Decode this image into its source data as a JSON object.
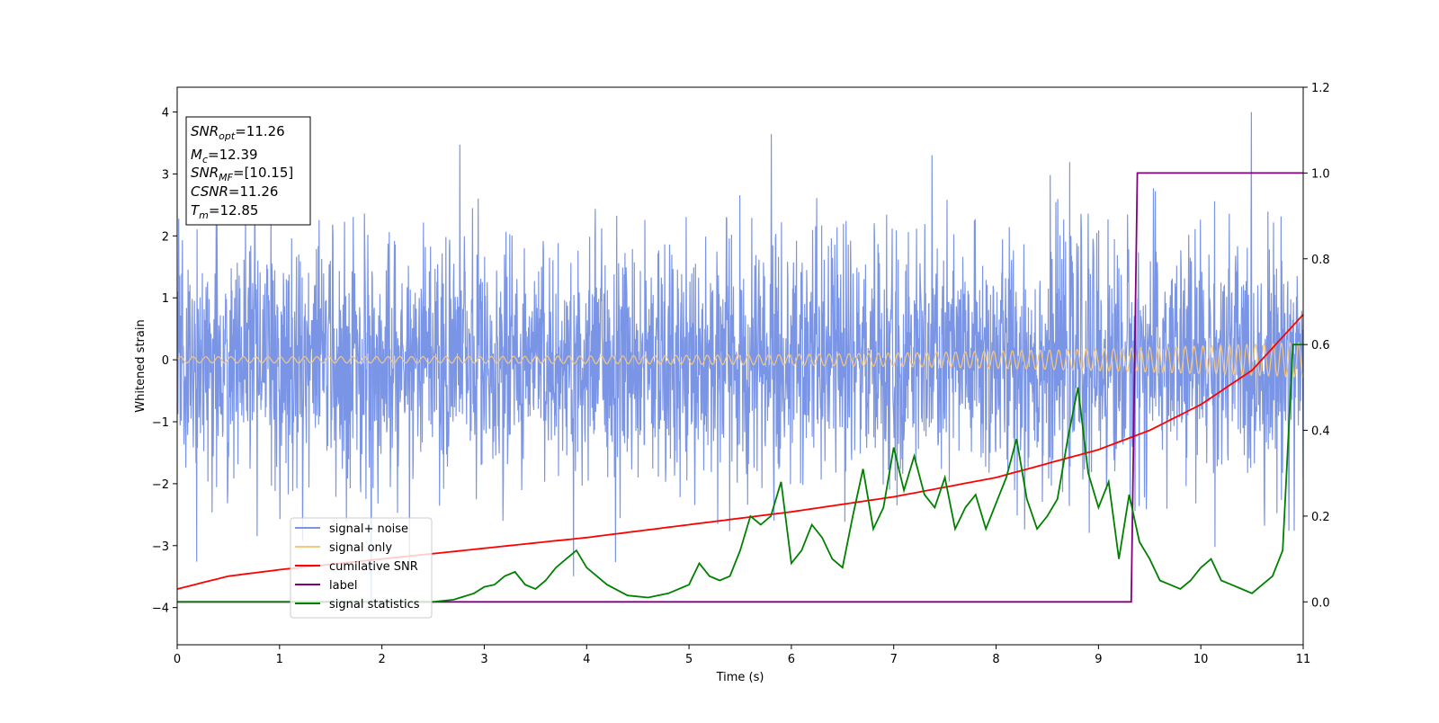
{
  "chart_data": {
    "type": "line",
    "xlabel": "Time (s)",
    "ylabel": "Whitened strain",
    "xlim": [
      0,
      11
    ],
    "ylim": [
      -4.6,
      4.4
    ],
    "y2lim": [
      -0.1,
      1.2
    ],
    "x_ticks": [
      0,
      1,
      2,
      3,
      4,
      5,
      6,
      7,
      8,
      9,
      10,
      11
    ],
    "y_ticks": [
      4,
      3,
      2,
      1,
      0,
      -1,
      -2,
      -3,
      -4
    ],
    "y2_ticks": [
      1.2,
      1.0,
      0.8,
      0.6,
      0.4,
      0.2,
      0.0
    ],
    "x_tick_labels": [
      "0",
      "1",
      "2",
      "3",
      "4",
      "5",
      "6",
      "7",
      "8",
      "9",
      "10",
      "11"
    ],
    "y_tick_labels": [
      "4",
      "3",
      "2",
      "1",
      "0",
      "−1",
      "−2",
      "−3",
      "−4"
    ],
    "y2_tick_labels": [
      "1.2",
      "1.0",
      "0.8",
      "0.6",
      "0.4",
      "0.2",
      "0.0"
    ],
    "grid": false,
    "legend_position": "lower-left",
    "series": [
      {
        "name": "signal+ noise",
        "axis": "left",
        "color": "#7b95e6",
        "description_values": {
          "mean": 0,
          "typical_amplitude": 1.0,
          "range": [
            -3.95,
            4.0
          ]
        }
      },
      {
        "name": "signal only",
        "axis": "left",
        "color": "#f5c77e",
        "description_values": {
          "amplitude_start": 0.05,
          "amplitude_end": 0.28
        }
      },
      {
        "name": "cumilative SNR",
        "axis": "right",
        "color": "#ff0000",
        "x": [
          0,
          0.5,
          1,
          2,
          3,
          4,
          5,
          6,
          7,
          8,
          9,
          9.5,
          10,
          10.5,
          11
        ],
        "y": [
          0.03,
          0.06,
          0.075,
          0.1,
          0.125,
          0.15,
          0.18,
          0.21,
          0.245,
          0.29,
          0.355,
          0.4,
          0.46,
          0.54,
          0.67
        ]
      },
      {
        "name": "label",
        "axis": "right",
        "color": "#800080",
        "x": [
          0,
          9.32,
          9.38,
          11
        ],
        "y": [
          0.0,
          0.0,
          1.0,
          1.0
        ]
      },
      {
        "name": "signal statistics",
        "axis": "right",
        "color": "#008000",
        "x": [
          0,
          0.5,
          1,
          1.5,
          2,
          2.5,
          2.7,
          2.9,
          3.0,
          3.1,
          3.2,
          3.3,
          3.4,
          3.5,
          3.6,
          3.7,
          3.8,
          3.9,
          4.0,
          4.2,
          4.4,
          4.6,
          4.8,
          5.0,
          5.1,
          5.2,
          5.3,
          5.4,
          5.5,
          5.6,
          5.7,
          5.8,
          5.9,
          6.0,
          6.1,
          6.2,
          6.3,
          6.4,
          6.5,
          6.6,
          6.7,
          6.8,
          6.9,
          7.0,
          7.1,
          7.2,
          7.3,
          7.4,
          7.5,
          7.6,
          7.7,
          7.8,
          7.9,
          8.0,
          8.1,
          8.2,
          8.3,
          8.4,
          8.5,
          8.6,
          8.7,
          8.8,
          8.9,
          9.0,
          9.1,
          9.2,
          9.3,
          9.4,
          9.5,
          9.6,
          9.7,
          9.8,
          9.9,
          10.0,
          10.1,
          10.2,
          10.3,
          10.4,
          10.5,
          10.6,
          10.7,
          10.8,
          10.9,
          11.0
        ],
        "y": [
          0.0,
          0.0,
          0.0,
          0.0,
          0.0,
          0.0,
          0.005,
          0.02,
          0.035,
          0.04,
          0.06,
          0.07,
          0.04,
          0.03,
          0.05,
          0.08,
          0.1,
          0.12,
          0.08,
          0.04,
          0.015,
          0.01,
          0.02,
          0.04,
          0.09,
          0.06,
          0.05,
          0.06,
          0.12,
          0.2,
          0.18,
          0.2,
          0.28,
          0.09,
          0.12,
          0.18,
          0.15,
          0.1,
          0.08,
          0.2,
          0.31,
          0.17,
          0.22,
          0.36,
          0.26,
          0.34,
          0.25,
          0.22,
          0.29,
          0.17,
          0.22,
          0.25,
          0.17,
          0.23,
          0.29,
          0.38,
          0.24,
          0.17,
          0.2,
          0.24,
          0.38,
          0.5,
          0.3,
          0.22,
          0.28,
          0.1,
          0.25,
          0.14,
          0.1,
          0.05,
          0.04,
          0.03,
          0.05,
          0.08,
          0.1,
          0.05,
          0.04,
          0.03,
          0.02,
          0.04,
          0.06,
          0.12,
          0.6,
          0.6
        ]
      }
    ],
    "stats_box": [
      {
        "main": "SNR",
        "sub": "opt",
        "rest": "=11.26"
      },
      {
        "main": "M",
        "sub": "c",
        "rest": "=12.39"
      },
      {
        "main": "SNR",
        "sub": "MF",
        "rest": "=[10.15]"
      },
      {
        "main": "CSNR",
        "sub": "",
        "rest": "=11.26"
      },
      {
        "main": "T",
        "sub": "m",
        "rest": "=12.85"
      }
    ]
  }
}
